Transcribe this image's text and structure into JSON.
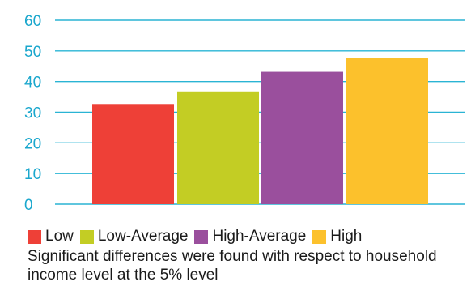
{
  "chart_data": {
    "type": "bar",
    "categories": [
      "Low",
      "Low-Average",
      "High-Average",
      "High"
    ],
    "values": [
      32.7,
      36.8,
      43.2,
      47.7
    ],
    "colors": [
      "#ee4037",
      "#c3cd24",
      "#9a4f9d",
      "#fcc12c"
    ],
    "ylim": [
      0,
      60
    ],
    "yticks": [
      0,
      10,
      20,
      30,
      40,
      50,
      60
    ],
    "grid": true,
    "grid_color": "#2ab4d4",
    "tick_label_color": "#1aa7cd",
    "legend_position": "bottom",
    "title": "",
    "xlabel": "",
    "ylabel": ""
  },
  "legend": {
    "items": [
      {
        "label": "Low",
        "color": "#ee4037"
      },
      {
        "label": "Low-Average",
        "color": "#c3cd24"
      },
      {
        "label": "High-Average",
        "color": "#9a4f9d"
      },
      {
        "label": "High",
        "color": "#fcc12c"
      }
    ]
  },
  "footnote": "Significant differences were found with respect to household income level at the 5% level"
}
